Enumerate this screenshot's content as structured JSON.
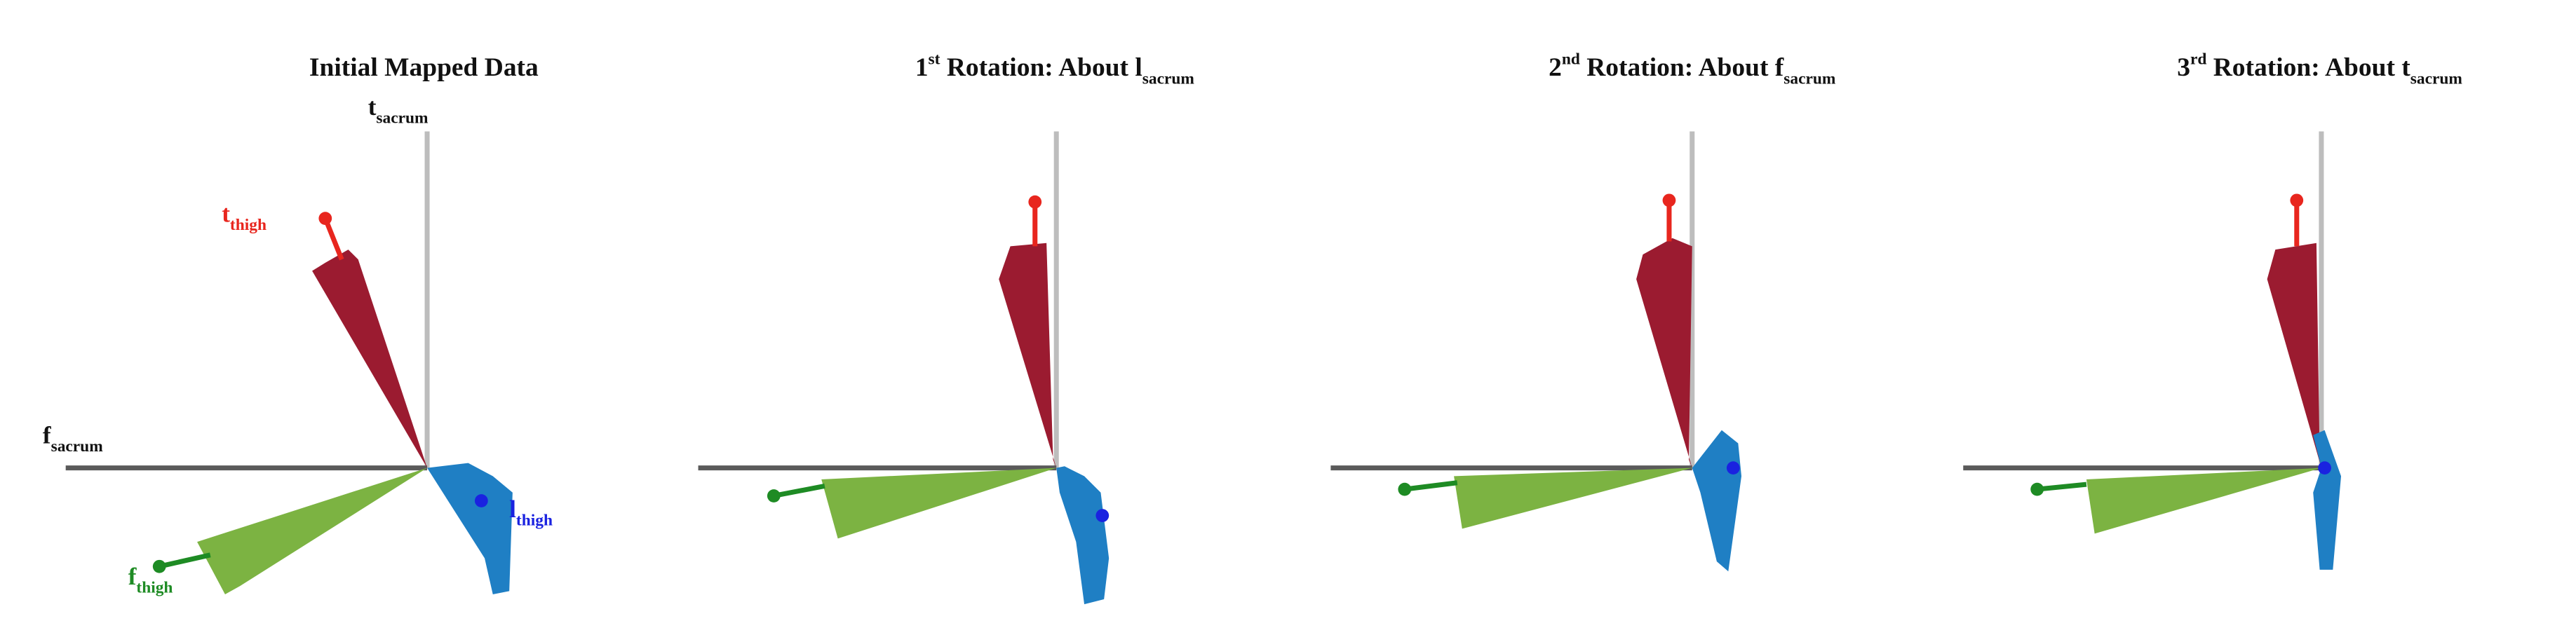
{
  "panels": [
    {
      "title": {
        "text": "Initial Mapped Data"
      },
      "labels": [
        {
          "symbol": "t",
          "sub": "sacrum"
        },
        {
          "symbol": "f",
          "sub": "sacrum"
        },
        {
          "symbol": "t",
          "sub": "thigh"
        },
        {
          "symbol": "f",
          "sub": "thigh"
        },
        {
          "symbol": "l",
          "sub": "thigh"
        }
      ]
    },
    {
      "title": {
        "ordinal": "1",
        "suffix": "st",
        "text": "Rotation: About l",
        "sub": "sacrum"
      }
    },
    {
      "title": {
        "ordinal": "2",
        "suffix": "nd",
        "text": "Rotation: About f",
        "sub": "sacrum"
      }
    },
    {
      "title": {
        "ordinal": "3",
        "suffix": "rd",
        "text": "Rotation: About t",
        "sub": "sacrum"
      }
    }
  ]
}
